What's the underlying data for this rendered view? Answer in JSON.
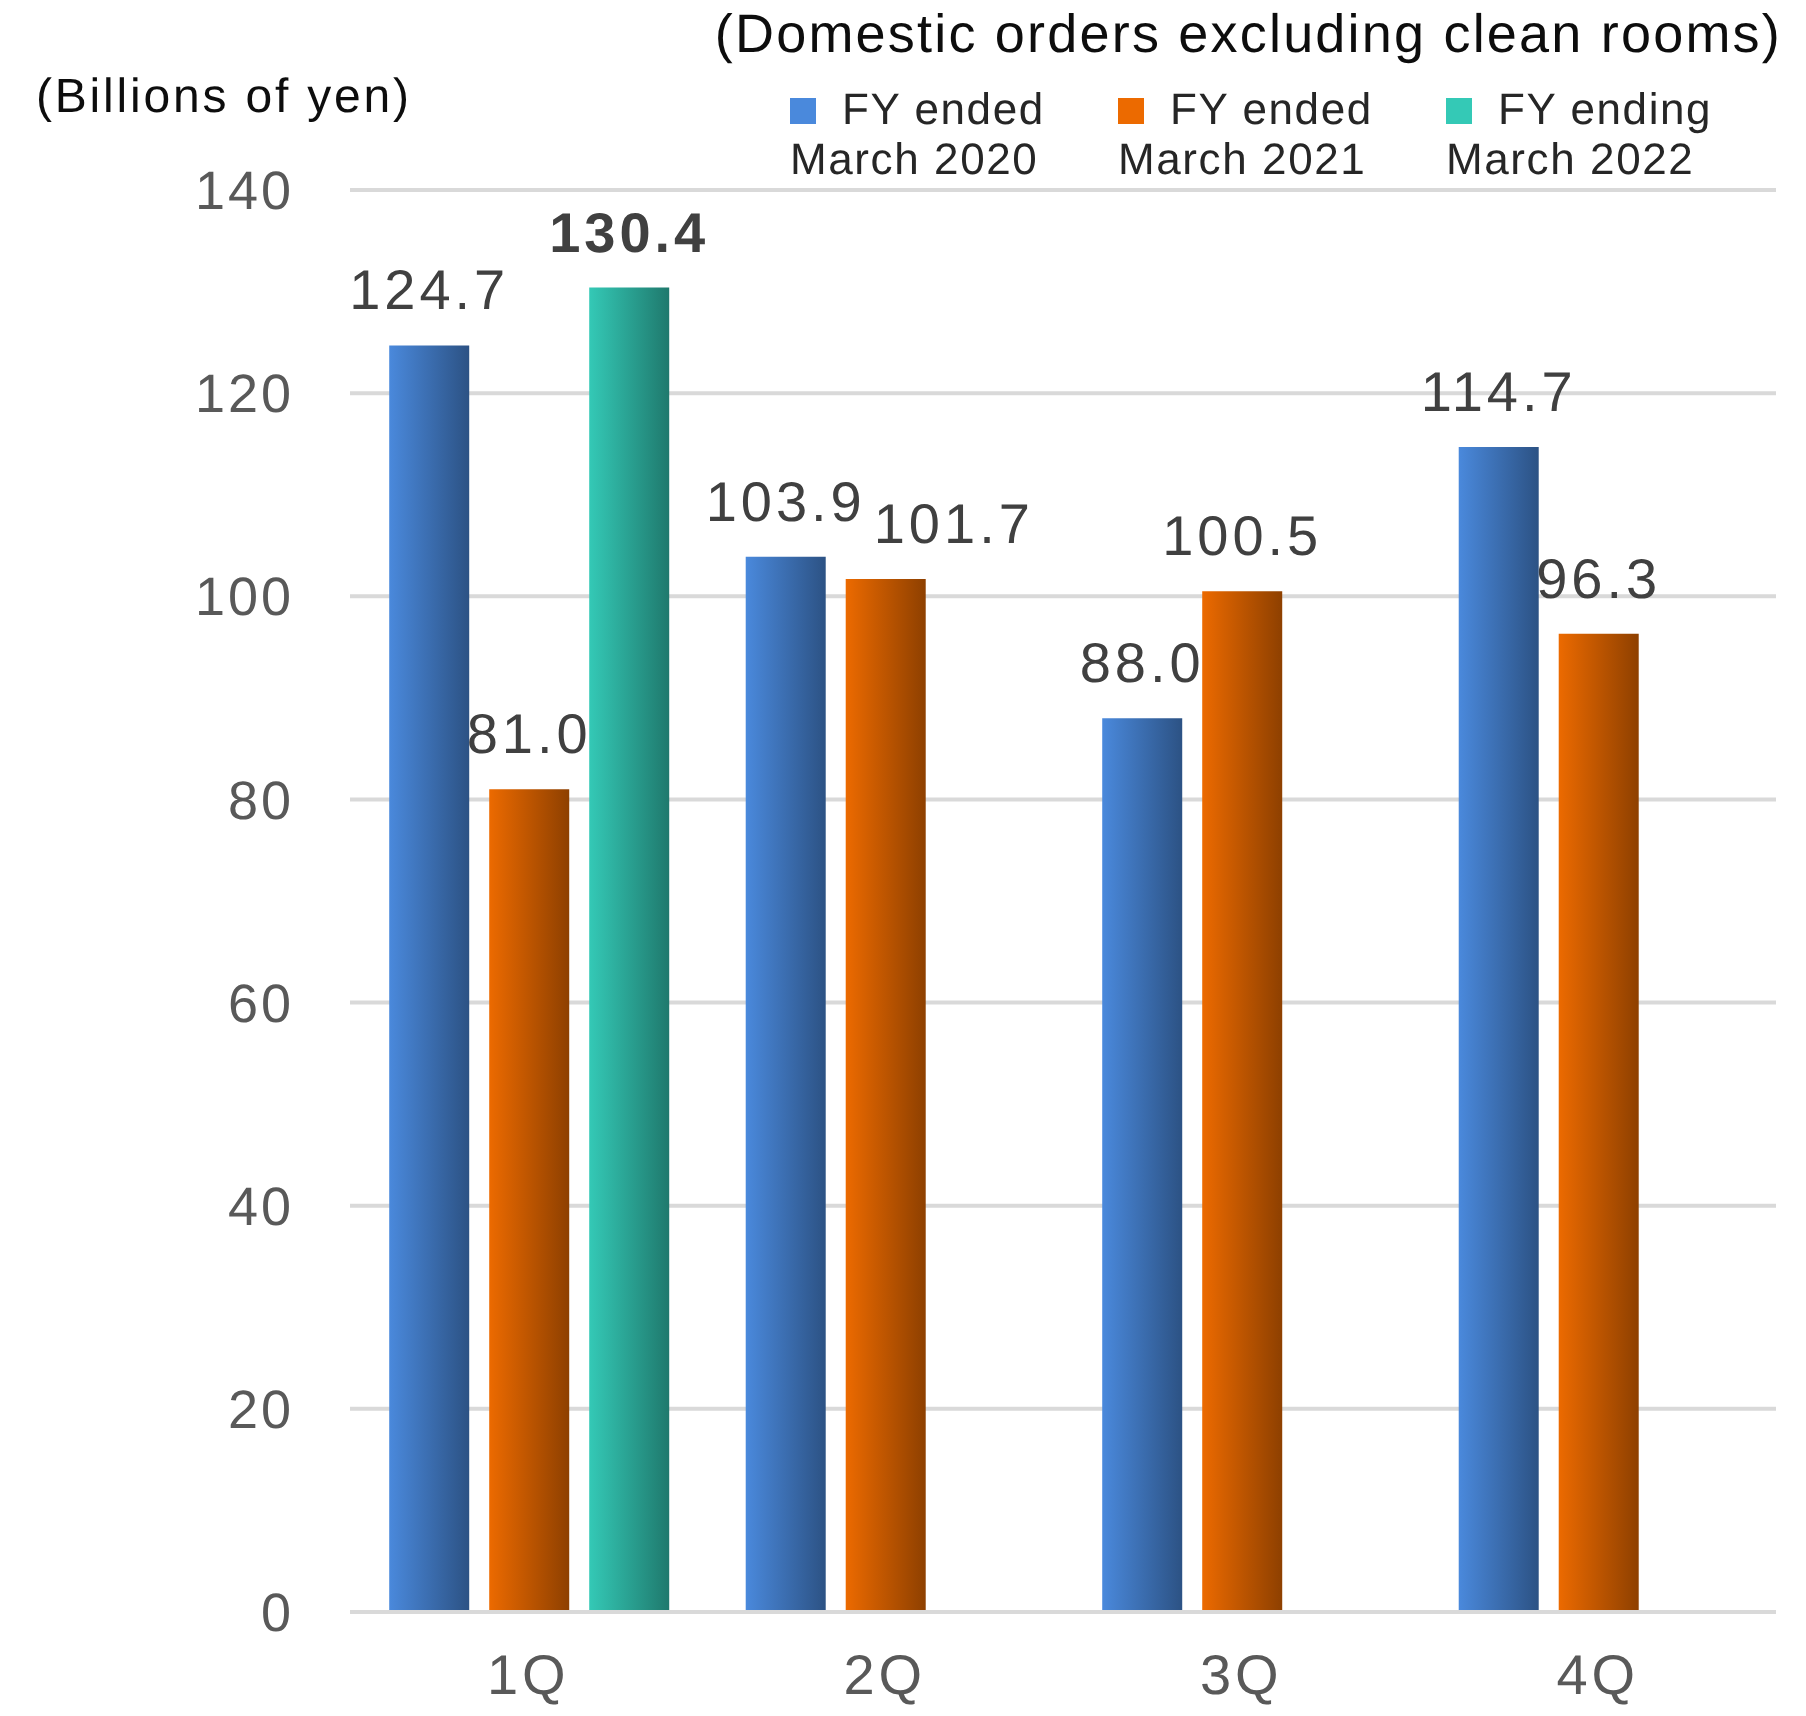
{
  "chart_data": {
    "type": "bar",
    "title": "(Domestic orders excluding clean rooms)",
    "ylabel": "(Billions of yen)",
    "categories": [
      "1Q",
      "2Q",
      "3Q",
      "4Q"
    ],
    "series": [
      {
        "name": "FY ended March 2020",
        "color": "#4a89dc",
        "values": [
          124.7,
          103.9,
          88.0,
          114.7
        ],
        "value_labels": [
          "124.7",
          "103.9",
          "88.0",
          "114.7"
        ]
      },
      {
        "name": "FY ended March 2021",
        "color": "#ec6a00",
        "values": [
          81.0,
          101.7,
          100.5,
          96.3
        ],
        "value_labels": [
          "81.0",
          "101.7",
          "100.5",
          "96.3"
        ]
      },
      {
        "name": "FY ending March 2022",
        "color": "#34c9b6",
        "values": [
          130.4,
          null,
          null,
          null
        ],
        "value_labels": [
          "130.4",
          null,
          null,
          null
        ]
      }
    ],
    "ylim": [
      0,
      140
    ],
    "yticks": [
      0,
      20,
      40,
      60,
      80,
      100,
      120,
      140
    ],
    "grid": "y",
    "legend": "top right"
  }
}
